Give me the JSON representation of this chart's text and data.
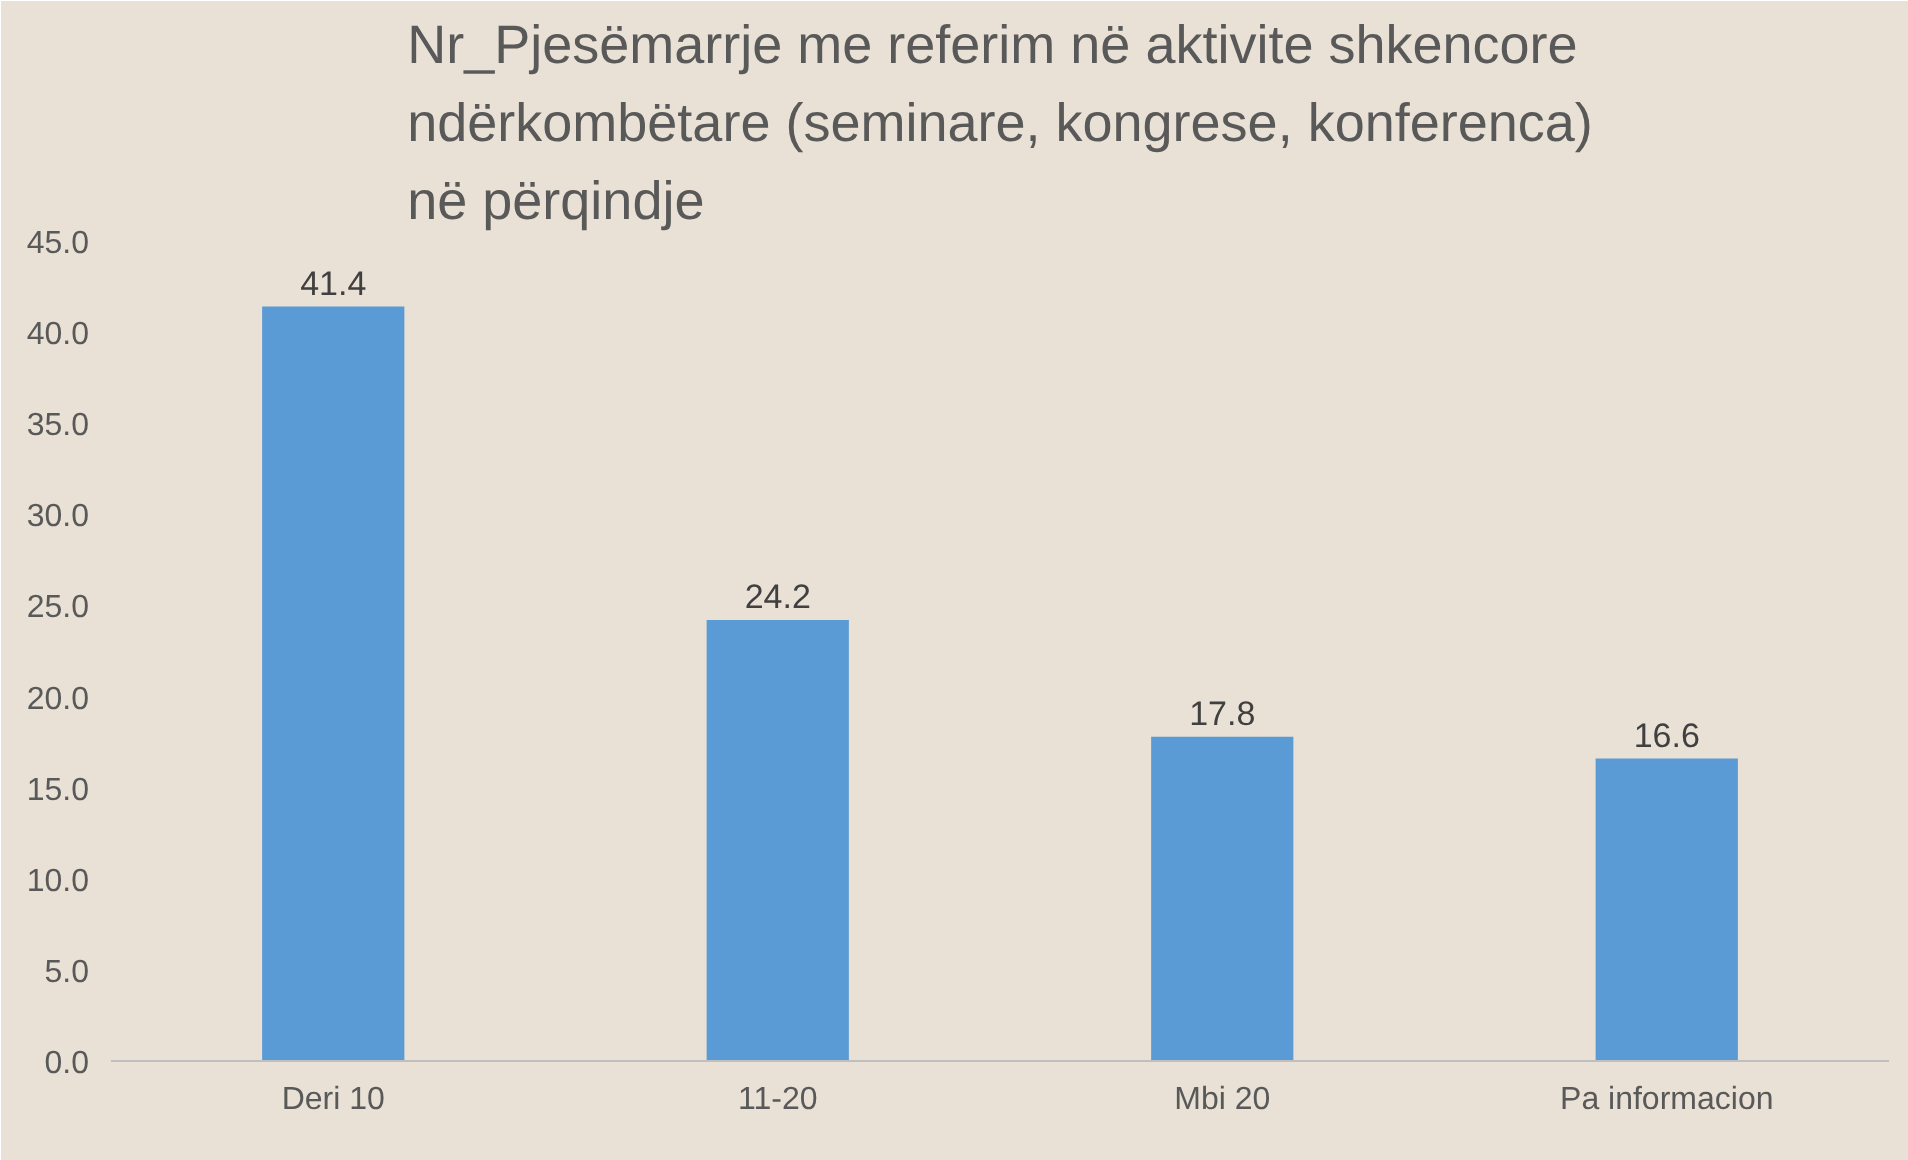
{
  "chart_data": {
    "type": "bar",
    "title": "Nr_Pjesëmarrje me referim në aktivite shkencore\nndërkombëtare (seminare, kongrese, konferenca)\nnë përqindje",
    "categories": [
      "Deri 10",
      "11-20",
      "Mbi 20",
      "Pa informacion"
    ],
    "values": [
      41.4,
      24.2,
      17.8,
      16.6
    ],
    "color": "#5b9bd5",
    "data_labels": true,
    "grid": false,
    "ylim": [
      0,
      45
    ],
    "yticks": [
      {
        "value": 0,
        "label": "0.0"
      },
      {
        "value": 5,
        "label": "5.0"
      },
      {
        "value": 10,
        "label": "10.0"
      },
      {
        "value": 15,
        "label": "15.0"
      },
      {
        "value": 20,
        "label": "20.0"
      },
      {
        "value": 25,
        "label": "25.0"
      },
      {
        "value": 30,
        "label": "30.0"
      },
      {
        "value": 35,
        "label": "35.0"
      },
      {
        "value": 40,
        "label": "40.0"
      },
      {
        "value": 45,
        "label": "45.0"
      }
    ]
  }
}
